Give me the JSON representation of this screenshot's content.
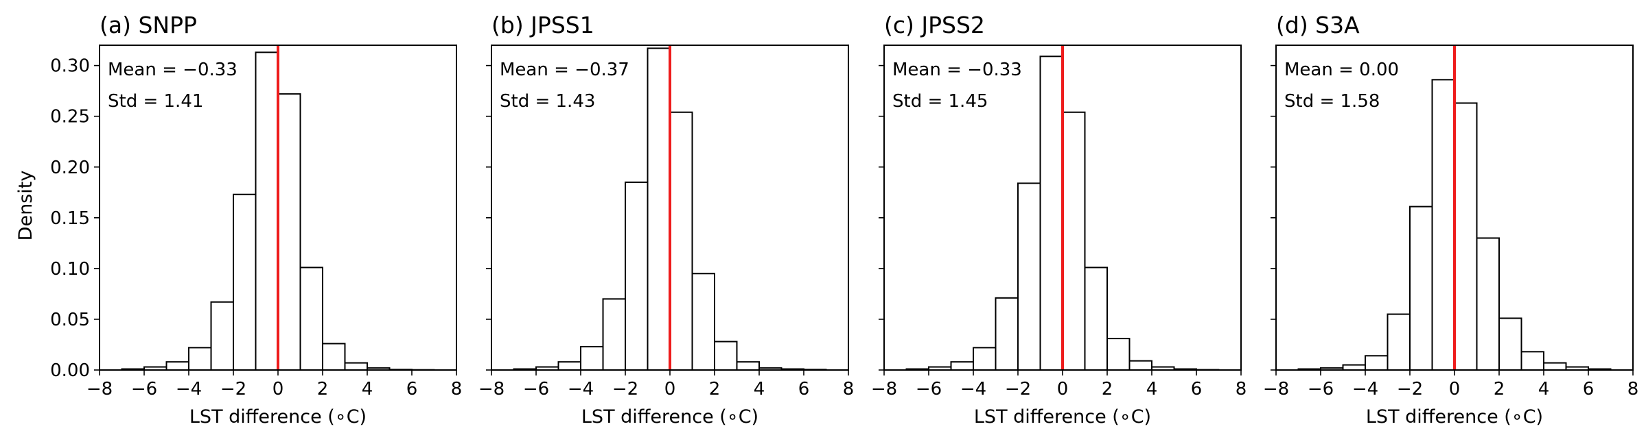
{
  "figure": {
    "ylabel": "Density",
    "xlabel": "LST difference (∘C)"
  },
  "colors": {
    "zero_line": "#ee1c1c",
    "bar_edge": "#000000",
    "bar_fill": "#ffffff"
  },
  "chart_data": [
    {
      "type": "bar",
      "title": "(a) SNPP",
      "xlabel": "LST difference (∘C)",
      "ylabel": "Density",
      "xlim": [
        -8,
        8
      ],
      "ylim": [
        0,
        0.32
      ],
      "xticks": [
        -8,
        -6,
        -4,
        -2,
        0,
        2,
        4,
        6,
        8
      ],
      "yticks": [
        0.0,
        0.05,
        0.1,
        0.15,
        0.2,
        0.25,
        0.3
      ],
      "bin_edges": [
        -7,
        -6,
        -5,
        -4,
        -3,
        -2,
        -1,
        0,
        1,
        2,
        3,
        4,
        5,
        6,
        7
      ],
      "values": [
        0.001,
        0.003,
        0.008,
        0.022,
        0.067,
        0.173,
        0.313,
        0.272,
        0.101,
        0.026,
        0.007,
        0.002,
        0.0005,
        0.0002
      ],
      "vline": 0,
      "annotations": [
        "Mean = −0.33",
        "Std = 1.41"
      ]
    },
    {
      "type": "bar",
      "title": "(b) JPSS1",
      "xlabel": "LST difference (∘C)",
      "ylim": [
        0,
        0.32
      ],
      "xlim": [
        -8,
        8
      ],
      "xticks": [
        -8,
        -6,
        -4,
        -2,
        0,
        2,
        4,
        6,
        8
      ],
      "bin_edges": [
        -7,
        -6,
        -5,
        -4,
        -3,
        -2,
        -1,
        0,
        1,
        2,
        3,
        4,
        5,
        6,
        7
      ],
      "values": [
        0.001,
        0.003,
        0.008,
        0.023,
        0.07,
        0.185,
        0.317,
        0.254,
        0.095,
        0.028,
        0.008,
        0.002,
        0.001,
        0.0005
      ],
      "vline": 0,
      "annotations": [
        "Mean = −0.37",
        "Std = 1.43"
      ]
    },
    {
      "type": "bar",
      "title": "(c) JPSS2",
      "xlabel": "LST difference (∘C)",
      "ylim": [
        0,
        0.32
      ],
      "xlim": [
        -8,
        8
      ],
      "xticks": [
        -8,
        -6,
        -4,
        -2,
        0,
        2,
        4,
        6,
        8
      ],
      "bin_edges": [
        -7,
        -6,
        -5,
        -4,
        -3,
        -2,
        -1,
        0,
        1,
        2,
        3,
        4,
        5,
        6,
        7
      ],
      "values": [
        0.001,
        0.003,
        0.008,
        0.022,
        0.071,
        0.184,
        0.309,
        0.254,
        0.101,
        0.031,
        0.009,
        0.003,
        0.001,
        0.0003
      ],
      "vline": 0,
      "annotations": [
        "Mean = −0.33",
        "Std = 1.45"
      ]
    },
    {
      "type": "bar",
      "title": "(d) S3A",
      "xlabel": "LST difference (∘C)",
      "ylim": [
        0,
        0.32
      ],
      "xlim": [
        -8,
        8
      ],
      "xticks": [
        -8,
        -6,
        -4,
        -2,
        0,
        2,
        4,
        6,
        8
      ],
      "bin_edges": [
        -7,
        -6,
        -5,
        -4,
        -3,
        -2,
        -1,
        0,
        1,
        2,
        3,
        4,
        5,
        6,
        7
      ],
      "values": [
        0.001,
        0.002,
        0.005,
        0.014,
        0.055,
        0.161,
        0.286,
        0.263,
        0.13,
        0.051,
        0.018,
        0.007,
        0.003,
        0.001
      ],
      "vline": 0,
      "annotations": [
        "Mean = 0.00",
        "Std = 1.58"
      ]
    }
  ]
}
